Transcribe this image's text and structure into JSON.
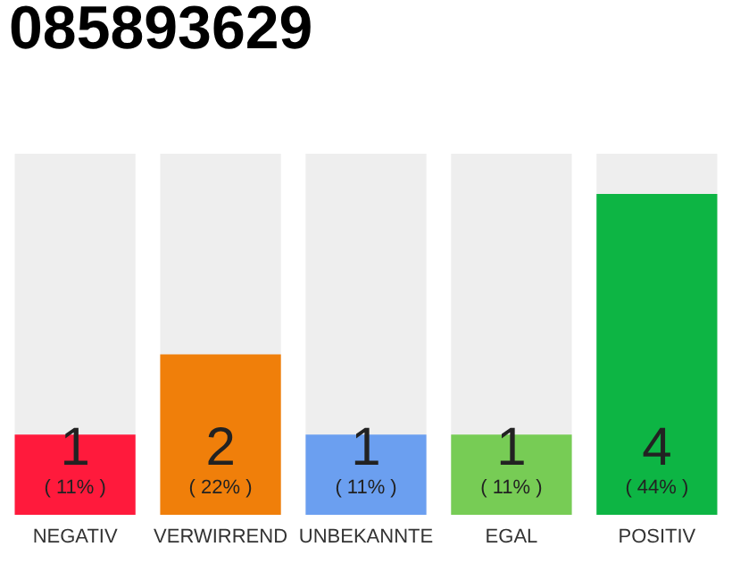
{
  "chart_data": {
    "type": "bar",
    "title": "085893629",
    "categories": [
      "NEGATIV",
      "VERWIRREND",
      "UNBEKANNTE",
      "EGAL",
      "POSITIV"
    ],
    "values": [
      1,
      2,
      1,
      1,
      4
    ],
    "colors": [
      "#ff1a3c",
      "#f07f0a",
      "#6b9ff0",
      "#77cc55",
      "#0db544"
    ],
    "ylim": [
      0,
      4.5
    ],
    "data_labels": true,
    "annotations": [
      "( 11% )",
      "( 22% )",
      "( 11% )",
      "( 11% )",
      "( 44% )"
    ],
    "grid": false,
    "tick_labels": "x"
  }
}
